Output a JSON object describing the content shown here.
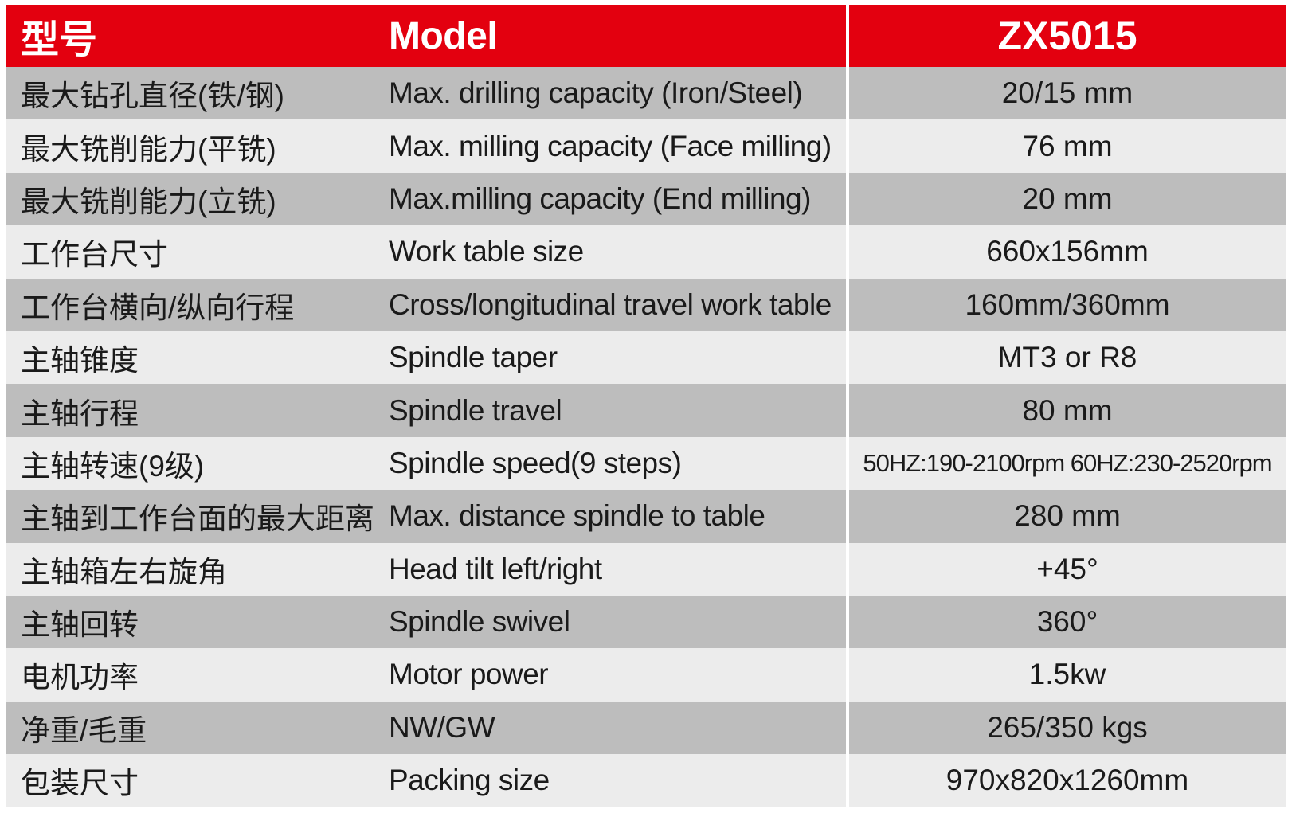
{
  "header": {
    "col_cn": "型号",
    "col_en": "Model",
    "col_value": "ZX5015"
  },
  "rows": [
    {
      "cn": "最大钻孔直径(铁/钢)",
      "en": "Max. drilling capacity (Iron/Steel)",
      "value": "20/15 mm"
    },
    {
      "cn": "最大铣削能力(平铣)",
      "en": "Max. milling capacity (Face milling)",
      "value": "76 mm"
    },
    {
      "cn": "最大铣削能力(立铣)",
      "en": "Max.milling capacity (End milling)",
      "value": "20 mm"
    },
    {
      "cn": "工作台尺寸",
      "en": "Work table size",
      "value": "660x156mm"
    },
    {
      "cn": "工作台横向/纵向行程",
      "en": "Cross/longitudinal travel work table",
      "value": "160mm/360mm"
    },
    {
      "cn": "主轴锥度",
      "en": "Spindle taper",
      "value": "MT3 or R8"
    },
    {
      "cn": "主轴行程",
      "en": "Spindle travel",
      "value": "80 mm"
    },
    {
      "cn": "主轴转速(9级)",
      "en": "Spindle speed(9 steps)",
      "value": "50HZ:190-2100rpm 60HZ:230-2520rpm"
    },
    {
      "cn": "主轴到工作台面的最大距离",
      "en": "Max. distance spindle to table",
      "value": "280 mm"
    },
    {
      "cn": "主轴箱左右旋角",
      "en": "Head tilt left/right",
      "value": "+45°"
    },
    {
      "cn": "主轴回转",
      "en": "Spindle swivel",
      "value": "360°"
    },
    {
      "cn": "电机功率",
      "en": "Motor power",
      "value": "1.5kw"
    },
    {
      "cn": "净重/毛重",
      "en": "NW/GW",
      "value": "265/350 kgs"
    },
    {
      "cn": "包装尺寸",
      "en": "Packing size",
      "value": "970x820x1260mm"
    }
  ]
}
